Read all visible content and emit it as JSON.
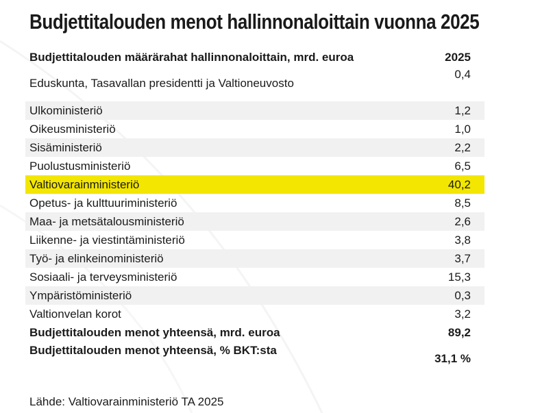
{
  "title": "Budjettitalouden menot hallinnonaloittain vuonna 2025",
  "table": {
    "header": [
      "Budjettitalouden määrärahat hallinnonaloittain, mrd. euroa",
      "2025"
    ],
    "rows": [
      [
        "Eduskunta, Tasavallan presidentti ja Valtioneuvosto",
        "0,4"
      ],
      [
        "Ulkoministeriö",
        "1,2"
      ],
      [
        "Oikeusministeriö",
        "1,0"
      ],
      [
        "Sisäministeriö",
        "2,2"
      ],
      [
        "Puolustusministeriö",
        "6,5"
      ],
      [
        "Valtiovarainministeriö",
        "40,2"
      ],
      [
        "Opetus- ja kulttuuriministeriö",
        "8,5"
      ],
      [
        "Maa- ja metsätalousministeriö",
        "2,6"
      ],
      [
        "Liikenne- ja viestintäministeriö",
        "3,8"
      ],
      [
        "Työ- ja elinkeinoministeriö",
        "3,7"
      ],
      [
        "Sosiaali- ja terveysministeriö",
        "15,3"
      ],
      [
        "Ympäristöministeriö",
        "0,3"
      ],
      [
        "Valtionvelan korot",
        "3,2"
      ]
    ],
    "totals": [
      [
        "Budjettitalouden menot yhteensä, mrd. euroa",
        "89,2"
      ],
      [
        "Budjettitalouden menot yhteensä, % BKT:sta",
        "31,1 %"
      ]
    ]
  },
  "source": "Lähde: Valtiovarainministeriö TA 2025"
}
